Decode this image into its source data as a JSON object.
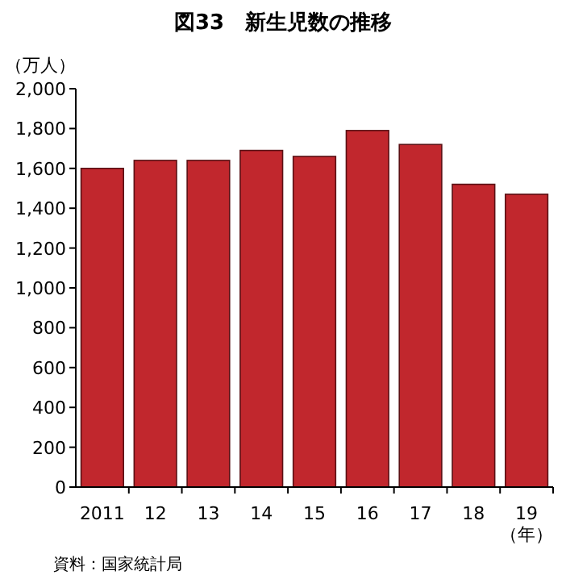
{
  "chart_data": {
    "type": "bar",
    "title": "図33　新生児数の推移",
    "ylabel": "（万人）",
    "xlabel": "（年）",
    "annotations": [
      "資料：国家統計局"
    ],
    "categories": [
      "2011",
      "12",
      "13",
      "14",
      "15",
      "16",
      "17",
      "18",
      "19"
    ],
    "values": [
      1600,
      1640,
      1640,
      1690,
      1660,
      1790,
      1720,
      1520,
      1470
    ],
    "color": "#c1272d",
    "ylim": [
      0,
      2000
    ],
    "yticks": [
      0,
      200,
      400,
      600,
      800,
      {
        "value": 1000,
        "label": "1,000"
      },
      {
        "value": 1200,
        "label": "1,200"
      },
      {
        "value": 1400,
        "label": "1,400"
      },
      {
        "value": 1600,
        "label": "1,600"
      },
      {
        "value": 1800,
        "label": "1,800"
      },
      {
        "value": 2000,
        "label": "2,000"
      }
    ]
  }
}
